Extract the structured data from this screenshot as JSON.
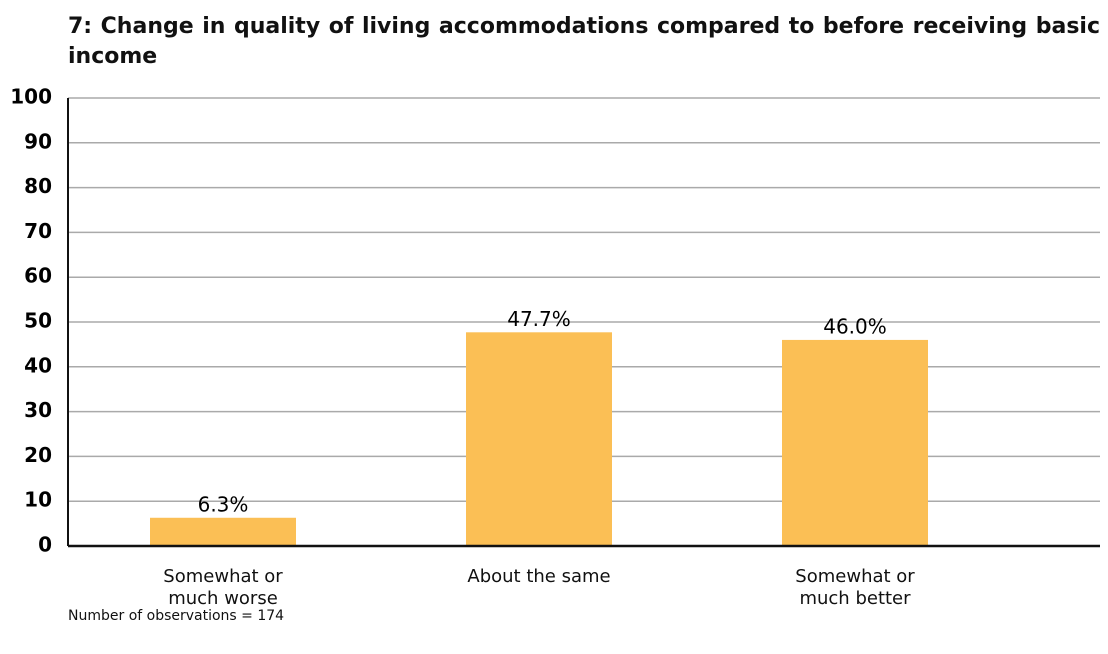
{
  "chart_data": {
    "type": "bar",
    "title": "7: Change in quality of living accommodations compared to before receiving basic income",
    "categories": [
      "Somewhat or much worse",
      "About the same",
      "Somewhat or much better"
    ],
    "values": [
      6.3,
      47.7,
      46.0
    ],
    "value_labels": [
      "6.3%",
      "47.7%",
      "46.0%"
    ],
    "color": "#fbbf55",
    "ylim": [
      0,
      100
    ],
    "yticks": [
      0,
      10,
      20,
      30,
      40,
      50,
      60,
      70,
      80,
      90,
      100
    ],
    "grid": true,
    "note": "Number of observations = 174"
  }
}
